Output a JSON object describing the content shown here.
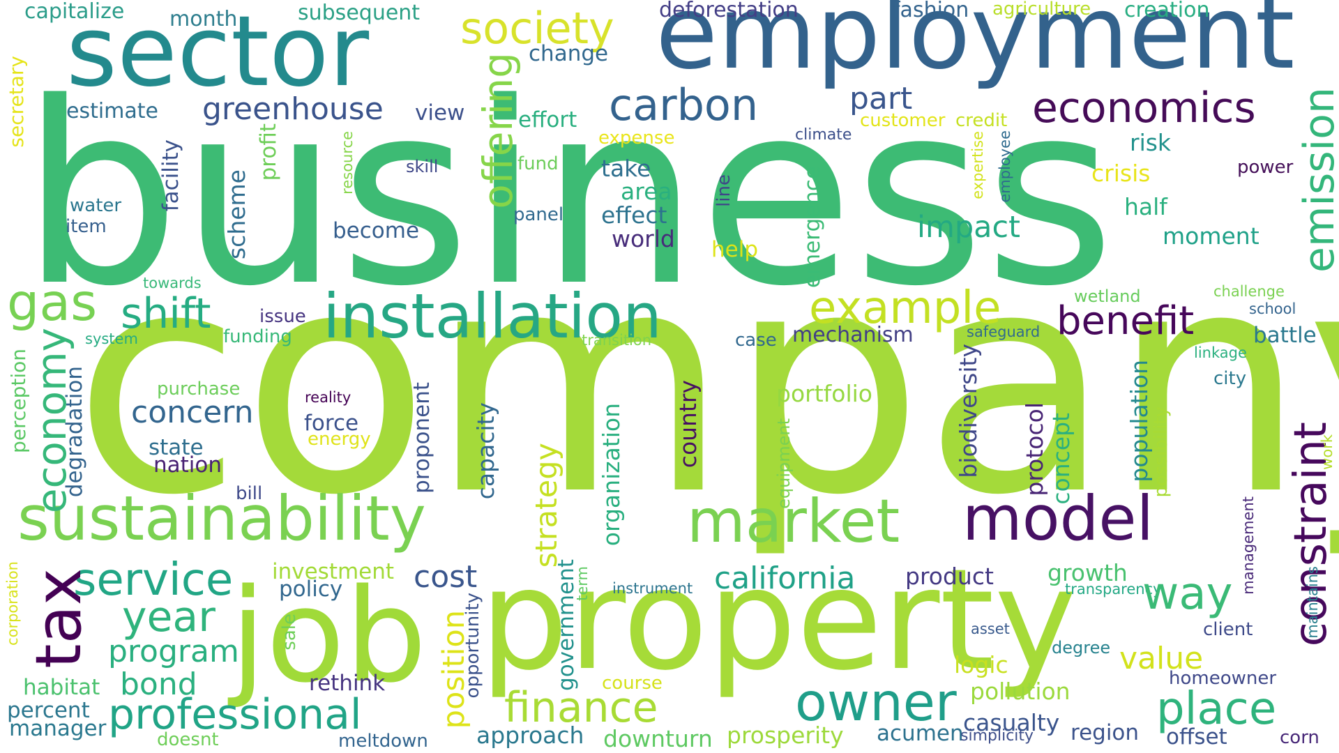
{
  "words": [
    {
      "text": "business",
      "color": "#3dbb74"
    },
    {
      "text": "company",
      "color": "#a4da3a"
    },
    {
      "text": "employment",
      "color": "#33628c"
    },
    {
      "text": "sector",
      "color": "#238a8d"
    },
    {
      "text": "property",
      "color": "#a6db38"
    },
    {
      "text": "job",
      "color": "#a0da39"
    },
    {
      "text": "society",
      "color": "#d8e22a"
    },
    {
      "text": "capitalize",
      "color": "#2a9c89"
    },
    {
      "text": "month",
      "color": "#2e7e8e"
    },
    {
      "text": "subsequent",
      "color": "#2aa085"
    },
    {
      "text": "deforestation",
      "color": "#433e86"
    },
    {
      "text": "fashion",
      "color": "#33638d"
    },
    {
      "text": "agriculture",
      "color": "#b8de29"
    },
    {
      "text": "creation",
      "color": "#27ad81"
    },
    {
      "text": "change",
      "color": "#31688e"
    },
    {
      "text": "carbon",
      "color": "#33628d"
    },
    {
      "text": "part",
      "color": "#39558c"
    },
    {
      "text": "economics",
      "color": "#450b57"
    },
    {
      "text": "estimate",
      "color": "#2f6d8e"
    },
    {
      "text": "greenhouse",
      "color": "#3a538b"
    },
    {
      "text": "view",
      "color": "#3c508b"
    },
    {
      "text": "effort",
      "color": "#29af7f"
    },
    {
      "text": "customer",
      "color": "#e2e418"
    },
    {
      "text": "credit",
      "color": "#c5e021"
    },
    {
      "text": "expense",
      "color": "#e9e51a"
    },
    {
      "text": "climate",
      "color": "#3c4f8a"
    },
    {
      "text": "risk",
      "color": "#21918c"
    },
    {
      "text": "crisis",
      "color": "#e8e419"
    },
    {
      "text": "power",
      "color": "#440f58"
    },
    {
      "text": "skill",
      "color": "#3f4788"
    },
    {
      "text": "fund",
      "color": "#6ccd5a"
    },
    {
      "text": "take",
      "color": "#2e6f8e"
    },
    {
      "text": "area",
      "color": "#2ab07f"
    },
    {
      "text": "effect",
      "color": "#2c728e"
    },
    {
      "text": "panel",
      "color": "#30698e"
    },
    {
      "text": "world",
      "color": "#472c7a"
    },
    {
      "text": "help",
      "color": "#dde318"
    },
    {
      "text": "impact",
      "color": "#23a983"
    },
    {
      "text": "half",
      "color": "#2ab07f"
    },
    {
      "text": "moment",
      "color": "#1fa188"
    },
    {
      "text": "water",
      "color": "#2a768e"
    },
    {
      "text": "item",
      "color": "#355f8d"
    },
    {
      "text": "become",
      "color": "#355e8d"
    },
    {
      "text": "installation",
      "color": "#26a784"
    },
    {
      "text": "example",
      "color": "#c3e022"
    },
    {
      "text": "benefit",
      "color": "#46075a"
    },
    {
      "text": "gas",
      "color": "#77d153"
    },
    {
      "text": "shift",
      "color": "#25ac82"
    },
    {
      "text": "towards",
      "color": "#36b878"
    },
    {
      "text": "issue",
      "color": "#463480"
    },
    {
      "text": "system",
      "color": "#25ab82"
    },
    {
      "text": "funding",
      "color": "#37b878"
    },
    {
      "text": "transition",
      "color": "#7fd34e"
    },
    {
      "text": "case",
      "color": "#31688e"
    },
    {
      "text": "mechanism",
      "color": "#423f85"
    },
    {
      "text": "safeguard",
      "color": "#306a8e"
    },
    {
      "text": "wetland",
      "color": "#67cc5c"
    },
    {
      "text": "challenge",
      "color": "#7ad151"
    },
    {
      "text": "school",
      "color": "#33638d"
    },
    {
      "text": "battle",
      "color": "#2a788e"
    },
    {
      "text": "linkage",
      "color": "#2ab07f"
    },
    {
      "text": "city",
      "color": "#2a788e"
    },
    {
      "text": "purchase",
      "color": "#6ccd5a"
    },
    {
      "text": "reality",
      "color": "#440154"
    },
    {
      "text": "concern",
      "color": "#32658e"
    },
    {
      "text": "force",
      "color": "#3b518b"
    },
    {
      "text": "energy",
      "color": "#dfe318"
    },
    {
      "text": "portfolio",
      "color": "#95d840"
    },
    {
      "text": "state",
      "color": "#2e6e8e"
    },
    {
      "text": "nation",
      "color": "#482173"
    },
    {
      "text": "bill",
      "color": "#3e4989"
    },
    {
      "text": "sustainability",
      "color": "#7ad151"
    },
    {
      "text": "market",
      "color": "#7ad151"
    },
    {
      "text": "model",
      "color": "#471164"
    },
    {
      "text": "service",
      "color": "#21a685"
    },
    {
      "text": "investment",
      "color": "#a2da37"
    },
    {
      "text": "policy",
      "color": "#31678e"
    },
    {
      "text": "cost",
      "color": "#39558c"
    },
    {
      "text": "california",
      "color": "#1fa187"
    },
    {
      "text": "product",
      "color": "#443983"
    },
    {
      "text": "growth",
      "color": "#48c16e"
    },
    {
      "text": "transparency",
      "color": "#22a884"
    },
    {
      "text": "year",
      "color": "#2eb37c"
    },
    {
      "text": "program",
      "color": "#29af7f"
    },
    {
      "text": "instrument",
      "color": "#2b748e"
    },
    {
      "text": "way",
      "color": "#3aba76"
    },
    {
      "text": "asset",
      "color": "#38598c"
    },
    {
      "text": "client",
      "color": "#3e4a89"
    },
    {
      "text": "degree",
      "color": "#26828e"
    },
    {
      "text": "value",
      "color": "#d2e21b"
    },
    {
      "text": "logic",
      "color": "#c8e020"
    },
    {
      "text": "rethink",
      "color": "#463480"
    },
    {
      "text": "bond",
      "color": "#2ab07f"
    },
    {
      "text": "habitat",
      "color": "#4ac16d"
    },
    {
      "text": "course",
      "color": "#d5e21a"
    },
    {
      "text": "homeowner",
      "color": "#3f4889"
    },
    {
      "text": "pollution",
      "color": "#9bd93c"
    },
    {
      "text": "percent",
      "color": "#2a768e"
    },
    {
      "text": "professional",
      "color": "#20a486"
    },
    {
      "text": "finance",
      "color": "#a8db34"
    },
    {
      "text": "place",
      "color": "#2eb37c"
    },
    {
      "text": "casualty",
      "color": "#3a548c"
    },
    {
      "text": "manager",
      "color": "#2a788e"
    },
    {
      "text": "owner",
      "color": "#1f9e89"
    },
    {
      "text": "approach",
      "color": "#2a788e"
    },
    {
      "text": "downturn",
      "color": "#5ec962"
    },
    {
      "text": "prosperity",
      "color": "#9dd93b"
    },
    {
      "text": "acumen",
      "color": "#2c718e"
    },
    {
      "text": "region",
      "color": "#3b528b"
    },
    {
      "text": "offset",
      "color": "#3b528b"
    },
    {
      "text": "corn",
      "color": "#482878"
    },
    {
      "text": "doesnt",
      "color": "#6ece58"
    },
    {
      "text": "meltdown",
      "color": "#32648e"
    },
    {
      "text": "simplicity",
      "color": "#3d4e8a"
    },
    {
      "text": "tax",
      "color": "#440154"
    },
    {
      "text": "emission",
      "color": "#33b67a"
    },
    {
      "text": "constraint",
      "color": "#46085c"
    },
    {
      "text": "offering",
      "color": "#86d549"
    },
    {
      "text": "economy",
      "color": "#35b779"
    },
    {
      "text": "secretary",
      "color": "#e5e419"
    },
    {
      "text": "degradation",
      "color": "#33638d"
    },
    {
      "text": "perception",
      "color": "#5ac864"
    },
    {
      "text": "facility",
      "color": "#3b528b"
    },
    {
      "text": "scheme",
      "color": "#2f6c8e"
    },
    {
      "text": "profit",
      "color": "#6ece58"
    },
    {
      "text": "resource",
      "color": "#86d549"
    },
    {
      "text": "line",
      "color": "#3f4788"
    },
    {
      "text": "emergence",
      "color": "#3bbb75"
    },
    {
      "text": "expertise",
      "color": "#d2e21b"
    },
    {
      "text": "employee",
      "color": "#2f6b8e"
    },
    {
      "text": "proponent",
      "color": "#3b528b"
    },
    {
      "text": "capacity",
      "color": "#31678e"
    },
    {
      "text": "strategy",
      "color": "#c5e021"
    },
    {
      "text": "organization",
      "color": "#29af7f"
    },
    {
      "text": "country",
      "color": "#471063"
    },
    {
      "text": "equipment",
      "color": "#7ad151"
    },
    {
      "text": "biodiversity",
      "color": "#3f4788"
    },
    {
      "text": "protocol",
      "color": "#482475"
    },
    {
      "text": "concept",
      "color": "#2ab07f"
    },
    {
      "text": "population",
      "color": "#23898e"
    },
    {
      "text": "possibility",
      "color": "#a8db34"
    },
    {
      "text": "work",
      "color": "#b5de2b"
    },
    {
      "text": "management",
      "color": "#482878"
    },
    {
      "text": "maintains",
      "color": "#277f8e"
    },
    {
      "text": "corporation",
      "color": "#d8e219"
    },
    {
      "text": "sale",
      "color": "#6ece58"
    },
    {
      "text": "position",
      "color": "#dde318"
    },
    {
      "text": "opportunity",
      "color": "#3b528b"
    },
    {
      "text": "government",
      "color": "#21918c"
    },
    {
      "text": "term",
      "color": "#5ec962"
    }
  ]
}
